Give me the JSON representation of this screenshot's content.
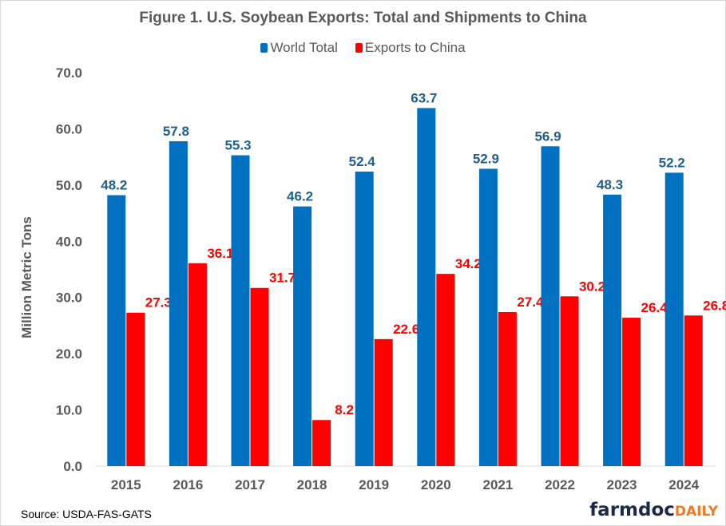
{
  "chart_data": {
    "type": "bar",
    "title": "Figure 1. U.S. Soybean Exports: Total and Shipments to China",
    "xlabel": "",
    "ylabel": "Million Metric Tons",
    "ylim": [
      0,
      70
    ],
    "yticks": [
      "0.0",
      "10.0",
      "20.0",
      "30.0",
      "40.0",
      "50.0",
      "60.0",
      "70.0"
    ],
    "grid": false,
    "legend_position": "top",
    "categories": [
      "2015",
      "2016",
      "2017",
      "2018",
      "2019",
      "2020",
      "2021",
      "2022",
      "2023",
      "2024"
    ],
    "series": [
      {
        "name": "World Total",
        "color": "#0070c0",
        "label_color": "#1f5f8b",
        "values": [
          48.2,
          57.8,
          55.3,
          46.2,
          52.4,
          63.7,
          52.9,
          56.9,
          48.3,
          52.2
        ]
      },
      {
        "name": "Exports to China",
        "color": "#ff0000",
        "label_color": "#ff0000",
        "values": [
          27.3,
          36.1,
          31.7,
          8.2,
          22.6,
          34.2,
          27.4,
          30.2,
          26.4,
          26.8
        ]
      }
    ]
  },
  "source": "Source: USDA-FAS-GATS",
  "logo": {
    "part1": "farmdoc",
    "part2": "DAILY"
  }
}
